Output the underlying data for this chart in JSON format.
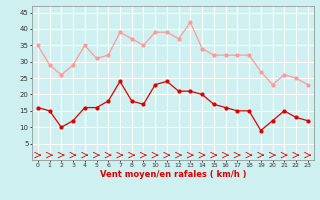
{
  "x": [
    0,
    1,
    2,
    3,
    4,
    5,
    6,
    7,
    8,
    9,
    10,
    11,
    12,
    13,
    14,
    15,
    16,
    17,
    18,
    19,
    20,
    21,
    22,
    23
  ],
  "wind_avg": [
    16,
    15,
    10,
    12,
    16,
    16,
    18,
    24,
    18,
    17,
    23,
    24,
    21,
    21,
    20,
    17,
    16,
    15,
    15,
    9,
    12,
    15,
    13,
    12
  ],
  "wind_gust": [
    35,
    29,
    26,
    29,
    35,
    31,
    32,
    39,
    37,
    35,
    39,
    39,
    37,
    42,
    34,
    32,
    32,
    32,
    32,
    27,
    23,
    26,
    25,
    23
  ],
  "bg_color": "#cff0f0",
  "grid_color": "#ffffff",
  "avg_color": "#dd0000",
  "gust_color": "#ff9999",
  "xlabel": "Vent moyen/en rafales ( km/h )",
  "ylim": [
    0,
    47
  ],
  "yticks": [
    5,
    10,
    15,
    20,
    25,
    30,
    35,
    40,
    45
  ],
  "xticks": [
    0,
    1,
    2,
    3,
    4,
    5,
    6,
    7,
    8,
    9,
    10,
    11,
    12,
    13,
    14,
    15,
    16,
    17,
    18,
    19,
    20,
    21,
    22,
    23
  ]
}
